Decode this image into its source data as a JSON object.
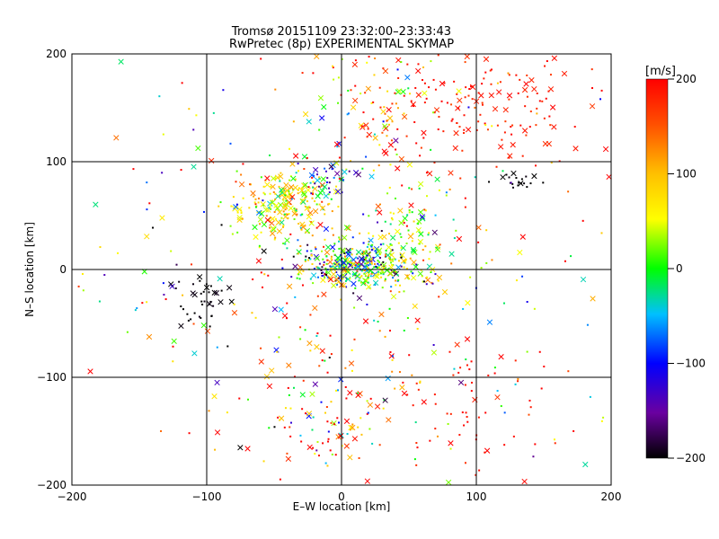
{
  "title_line1": "Tromsø 20151109 23:32:00–23:33:43",
  "title_line2": "RwPretec (8p) EXPERIMENTAL SKYMAP",
  "chart_data": {
    "type": "scatter",
    "xlabel": "E–W location [km]",
    "ylabel": "N–S location [km]",
    "xlim": [
      -200,
      200
    ],
    "ylim": [
      -200,
      200
    ],
    "xticks": [
      -200,
      -100,
      0,
      100,
      200
    ],
    "yticks": [
      -200,
      -100,
      0,
      100,
      200
    ],
    "xtick_labels": [
      "−200",
      "−100",
      "0",
      "100",
      "200"
    ],
    "ytick_labels": [
      "−200",
      "−100",
      "0",
      "100",
      "200"
    ],
    "grid": true,
    "colorbar": {
      "label": "[m/s]",
      "range": [
        -200,
        200
      ],
      "ticks": [
        200,
        100,
        0,
        -100,
        -200
      ],
      "tick_labels": [
        "200",
        "100",
        "0",
        "−100",
        "−200"
      ],
      "colormap": "rainbow (black → purple → blue → cyan → green → yellow → orange → red)"
    },
    "marker_types": [
      "dot",
      "x"
    ],
    "clusters": [
      {
        "x": -40,
        "y": 60,
        "sx": 20,
        "sy": 15,
        "n": 220,
        "vmean": 60,
        "vsd": 50
      },
      {
        "x": 5,
        "y": 5,
        "sx": 18,
        "sy": 10,
        "n": 250,
        "vmean": -20,
        "vsd": 110
      },
      {
        "x": 30,
        "y": 5,
        "sx": 20,
        "sy": 12,
        "n": 150,
        "vmean": 30,
        "vsd": 60
      },
      {
        "x": 100,
        "y": 150,
        "sx": 50,
        "sy": 30,
        "n": 160,
        "vmean": 185,
        "vsd": 15
      },
      {
        "x": 30,
        "y": 150,
        "sx": 30,
        "sy": 35,
        "n": 90,
        "vmean": 110,
        "vsd": 90
      },
      {
        "x": -10,
        "y": 85,
        "sx": 12,
        "sy": 10,
        "n": 40,
        "vmean": -90,
        "vsd": 50
      },
      {
        "x": -105,
        "y": -30,
        "sx": 12,
        "sy": 15,
        "n": 40,
        "vmean": -200,
        "vsd": 5
      },
      {
        "x": -5,
        "y": -135,
        "sx": 25,
        "sy": 25,
        "n": 90,
        "vmean": 100,
        "vsd": 110
      },
      {
        "x": 95,
        "y": -120,
        "sx": 35,
        "sy": 35,
        "n": 60,
        "vmean": 190,
        "vsd": 15
      },
      {
        "x": 130,
        "y": 80,
        "sx": 8,
        "sy": 5,
        "n": 20,
        "vmean": -200,
        "vsd": 5
      },
      {
        "x": 50,
        "y": 45,
        "sx": 15,
        "sy": 15,
        "n": 50,
        "vmean": 20,
        "vsd": 40
      },
      {
        "x": 0,
        "y": 0,
        "sx": 110,
        "sy": 110,
        "n": 380,
        "vmean": 60,
        "vsd": 140
      }
    ]
  }
}
